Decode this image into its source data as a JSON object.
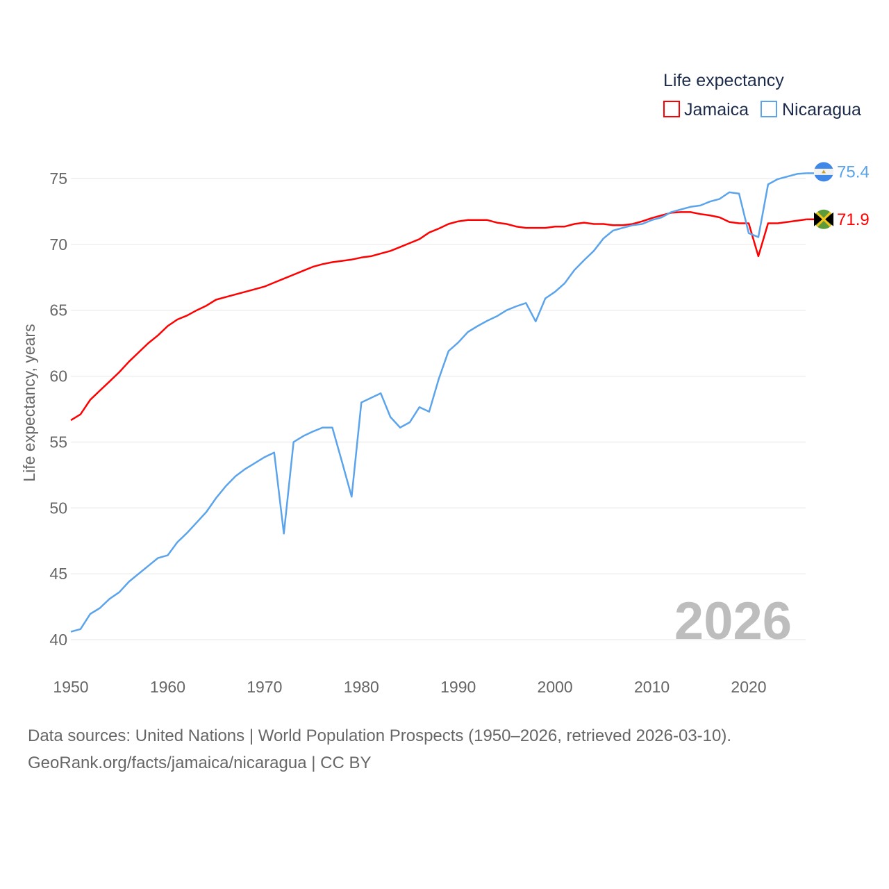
{
  "chart_data": {
    "type": "line",
    "ylabel": "Life expectancy, years",
    "xlabel": "",
    "xlim": [
      1950,
      2026
    ],
    "ylim": [
      40,
      75
    ],
    "x_ticks": [
      "1950",
      "1960",
      "1970",
      "1980",
      "1990",
      "2000",
      "2010",
      "2020"
    ],
    "y_ticks": [
      "40",
      "45",
      "50",
      "55",
      "60",
      "65",
      "70",
      "75"
    ],
    "grid": true,
    "legend": {
      "title": "Life expectancy",
      "placement": "top-right",
      "entries": [
        "Jamaica",
        "Nicaragua"
      ]
    },
    "year_watermark": "2026",
    "x": [
      1950,
      1951,
      1952,
      1953,
      1954,
      1955,
      1956,
      1957,
      1958,
      1959,
      1960,
      1961,
      1962,
      1963,
      1964,
      1965,
      1966,
      1967,
      1968,
      1969,
      1970,
      1971,
      1972,
      1973,
      1974,
      1975,
      1976,
      1977,
      1978,
      1979,
      1980,
      1981,
      1982,
      1983,
      1984,
      1985,
      1986,
      1987,
      1988,
      1989,
      1990,
      1991,
      1992,
      1993,
      1994,
      1995,
      1996,
      1997,
      1998,
      1999,
      2000,
      2001,
      2002,
      2003,
      2004,
      2005,
      2006,
      2007,
      2008,
      2009,
      2010,
      2011,
      2012,
      2013,
      2014,
      2015,
      2016,
      2017,
      2018,
      2019,
      2020,
      2021,
      2022,
      2023,
      2024,
      2025,
      2026
    ],
    "series": [
      {
        "name": "Jamaica",
        "color": "#ff0000",
        "end_label": "71.9",
        "values": [
          56.65,
          57.1,
          58.2,
          58.9,
          59.6,
          60.3,
          61.1,
          61.8,
          62.5,
          63.1,
          63.8,
          64.3,
          64.6,
          65.0,
          65.35,
          65.8,
          66.0,
          66.2,
          66.4,
          66.6,
          66.8,
          67.1,
          67.4,
          67.7,
          68.0,
          68.3,
          68.5,
          68.65,
          68.75,
          68.85,
          69.0,
          69.1,
          69.3,
          69.5,
          69.8,
          70.1,
          70.4,
          70.9,
          71.2,
          71.55,
          71.75,
          71.85,
          71.85,
          71.85,
          71.65,
          71.55,
          71.35,
          71.25,
          71.25,
          71.25,
          71.35,
          71.35,
          71.55,
          71.65,
          71.55,
          71.55,
          71.45,
          71.45,
          71.55,
          71.75,
          72.0,
          72.2,
          72.4,
          72.45,
          72.45,
          72.3,
          72.2,
          72.05,
          71.7,
          71.6,
          71.6,
          69.1,
          71.6,
          71.6,
          71.7,
          71.8,
          71.9
        ]
      },
      {
        "name": "Nicaragua",
        "color": "#5ba4ec",
        "end_label": "75.4",
        "values": [
          40.6,
          40.8,
          41.95,
          42.4,
          43.1,
          43.6,
          44.4,
          45.0,
          45.6,
          46.2,
          46.4,
          47.4,
          48.1,
          48.9,
          49.7,
          50.75,
          51.65,
          52.4,
          52.95,
          53.4,
          53.85,
          54.2,
          48.05,
          55.0,
          55.45,
          55.8,
          56.1,
          56.1,
          53.5,
          50.85,
          58.0,
          58.35,
          58.7,
          56.9,
          56.1,
          56.5,
          57.65,
          57.3,
          59.8,
          61.9,
          62.55,
          63.35,
          63.8,
          64.2,
          64.55,
          65.0,
          65.3,
          65.55,
          64.15,
          65.9,
          66.4,
          67.05,
          68.05,
          68.8,
          69.5,
          70.45,
          71.05,
          71.25,
          71.45,
          71.55,
          71.85,
          72.05,
          72.45,
          72.65,
          72.85,
          72.95,
          73.25,
          73.45,
          73.95,
          73.85,
          70.85,
          70.55,
          74.55,
          74.95,
          75.15,
          75.35,
          75.4
        ]
      }
    ]
  },
  "footer": {
    "line1": "Data sources: United Nations | World Population Prospects (1950–2026, retrieved 2026-03-10).",
    "line2": "GeoRank.org/facts/jamaica/nicaragua | CC BY"
  }
}
